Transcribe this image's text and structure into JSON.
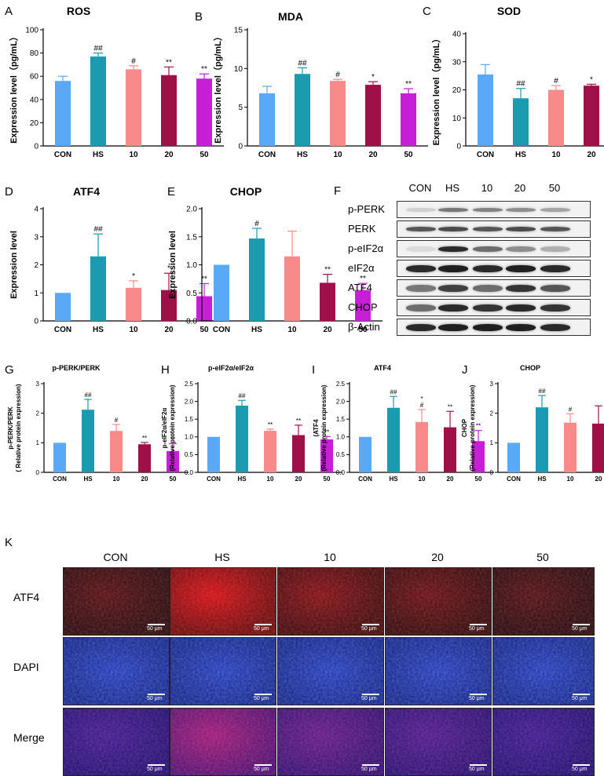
{
  "colors": {
    "CON": "#5aa9f6",
    "HS": "#1a9bb0",
    "10": "#f88a8a",
    "20": "#a01048",
    "50": "#c71ed8"
  },
  "chart_data": [
    {
      "id": "A",
      "panel": "A",
      "type": "bar",
      "title": "ROS",
      "ylabel": "Expression level（pg/mL）",
      "categories": [
        "CON",
        "HS",
        "10",
        "20",
        "50"
      ],
      "values": [
        56,
        77,
        66,
        61,
        58
      ],
      "errors": [
        4,
        3,
        3,
        7,
        4
      ],
      "sig": [
        "",
        "##",
        "#",
        "**",
        "**"
      ],
      "ylim": [
        0,
        100
      ],
      "yticks": [
        "0",
        "20",
        "40",
        "60",
        "80",
        "100"
      ]
    },
    {
      "id": "B",
      "panel": "B",
      "type": "bar",
      "title": "MDA",
      "ylabel": "Expression level（pg/mL）",
      "categories": [
        "CON",
        "HS",
        "10",
        "20",
        "50"
      ],
      "values": [
        6.8,
        9.3,
        8.4,
        7.9,
        6.8
      ],
      "errors": [
        0.9,
        0.8,
        0.2,
        0.4,
        0.6
      ],
      "sig": [
        "",
        "##",
        "#",
        "*",
        "**"
      ],
      "ylim": [
        0,
        15
      ],
      "yticks": [
        "0",
        "5",
        "10",
        "15"
      ]
    },
    {
      "id": "C",
      "panel": "C",
      "type": "bar",
      "title": "SOD",
      "ylabel": "Expression level（pg/mL）",
      "categories": [
        "CON",
        "HS",
        "10",
        "20",
        "50"
      ],
      "values": [
        25.5,
        17,
        20,
        21.5,
        22
      ],
      "errors": [
        3.5,
        3.5,
        1.5,
        0.5,
        0.5
      ],
      "sig": [
        "",
        "##",
        "#",
        "*",
        "*"
      ],
      "ylim": [
        0,
        40
      ],
      "yticks": [
        "0",
        "10",
        "20",
        "30",
        "40"
      ]
    },
    {
      "id": "D",
      "panel": "D",
      "type": "bar",
      "title": "ATF4",
      "ylabel": "Expression level",
      "categories": [
        "CON",
        "HS",
        "10",
        "20",
        "50"
      ],
      "values": [
        1.0,
        2.3,
        1.18,
        1.1,
        0.88
      ],
      "errors": [
        0,
        0.8,
        0.25,
        0.6,
        0.45
      ],
      "sig": [
        "",
        "##",
        "*",
        "*",
        "**"
      ],
      "ylim": [
        0,
        4
      ],
      "yticks": [
        "0",
        "1",
        "2",
        "3",
        "4"
      ]
    },
    {
      "id": "E",
      "panel": "E",
      "type": "bar",
      "title": "CHOP",
      "ylabel": "Expression level",
      "categories": [
        "CON",
        "HS",
        "10",
        "20",
        "50"
      ],
      "values": [
        1.0,
        1.47,
        1.15,
        0.68,
        0.55
      ],
      "errors": [
        0,
        0.18,
        0.45,
        0.15,
        0.12
      ],
      "sig": [
        "",
        "#",
        "",
        "**",
        "**"
      ],
      "ylim": [
        0,
        2.0
      ],
      "yticks": [
        "0.0",
        "0.5",
        "1.0",
        "1.5",
        "2.0"
      ]
    },
    {
      "id": "G",
      "panel": "G",
      "type": "bar",
      "title": "p-PERK/PERK",
      "ylabel": "p-PERK/PERK",
      "ylabel2": "( Relative protein expression)",
      "categories": [
        "CON",
        "HS",
        "10",
        "20",
        "50"
      ],
      "values": [
        1.0,
        2.12,
        1.4,
        0.95,
        0.72
      ],
      "errors": [
        0,
        0.35,
        0.22,
        0.06,
        0.25
      ],
      "sig": [
        "",
        "##",
        "#",
        "**",
        "**"
      ],
      "ylim": [
        0,
        3
      ],
      "yticks": [
        "0",
        "1",
        "2",
        "3"
      ]
    },
    {
      "id": "H",
      "panel": "H",
      "type": "bar",
      "title": "p-eIF2α/eIF2α",
      "ylabel": "p-eIF2α/eIF2α",
      "ylabel2": "(Relative protein expression)",
      "categories": [
        "CON",
        "HS",
        "10",
        "20",
        "50"
      ],
      "values": [
        1.0,
        1.88,
        1.17,
        1.05,
        0.93
      ],
      "errors": [
        0,
        0.15,
        0.05,
        0.28,
        0.08
      ],
      "sig": [
        "",
        "##",
        "**",
        "**",
        "**"
      ],
      "ylim": [
        0,
        2.5
      ],
      "yticks": [
        "0.0",
        "0.5",
        "1.0",
        "1.5",
        "2.0",
        "2.5"
      ]
    },
    {
      "id": "I",
      "panel": "I",
      "type": "bar",
      "title": "ATF4",
      "ylabel": "(ATF4",
      "ylabel2": "(Relative protein expression)",
      "categories": [
        "CON",
        "HS",
        "10",
        "20",
        "50"
      ],
      "values": [
        1.0,
        1.82,
        1.42,
        1.27,
        0.88
      ],
      "errors": [
        0,
        0.32,
        0.35,
        0.45,
        0.3
      ],
      "sig": [
        "",
        "##",
        "*\n#",
        "**",
        "**"
      ],
      "ylim": [
        0,
        2.5
      ],
      "yticks": [
        "0.0",
        "0.5",
        "1.0",
        "1.5",
        "2.0",
        "2.5"
      ]
    },
    {
      "id": "J",
      "panel": "J",
      "type": "bar",
      "title": "CHOP",
      "ylabel": "CHOP",
      "ylabel2": "(Relative protein expression)",
      "categories": [
        "CON",
        "HS",
        "10",
        "20",
        "50"
      ],
      "values": [
        1.0,
        2.2,
        1.68,
        1.65,
        1.32
      ],
      "errors": [
        0,
        0.4,
        0.3,
        0.6,
        0.38
      ],
      "sig": [
        "",
        "##",
        "#",
        "",
        "**"
      ],
      "ylim": [
        0,
        3
      ],
      "yticks": [
        "0",
        "1",
        "2",
        "3"
      ]
    }
  ],
  "western_blot": {
    "panel": "F",
    "columns": [
      "CON",
      "HS",
      "10",
      "20",
      "50"
    ],
    "rows": [
      "p-PERK",
      "PERK",
      "p-eIF2α",
      "eIF2α",
      "ATF4",
      "CHOP",
      "β-Actin"
    ]
  },
  "fluorescence": {
    "panel": "K",
    "columns": [
      "CON",
      "HS",
      "10",
      "20",
      "50"
    ],
    "rows": [
      "ATF4",
      "DAPI",
      "Merge"
    ],
    "scale_label": "50 μm"
  }
}
